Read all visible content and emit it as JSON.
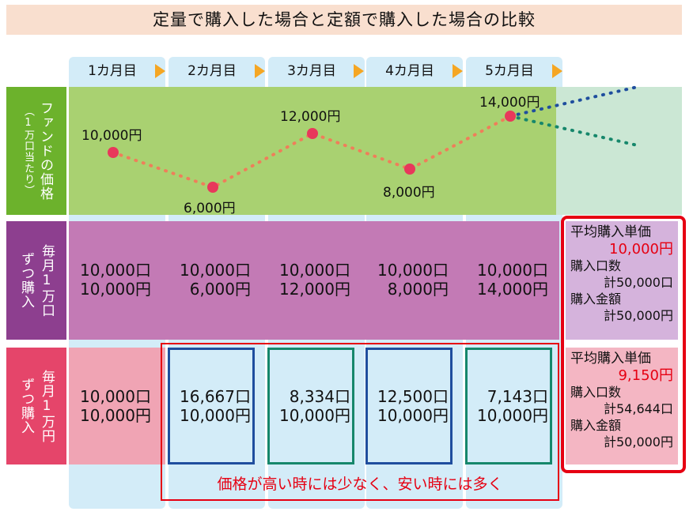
{
  "title": "定量で購入した場合と定額で購入した場合の比較",
  "months": [
    "1カ月目",
    "2カ月目",
    "3カ月目",
    "4カ月目",
    "5カ月目"
  ],
  "price_row": {
    "label_main": "ファンドの価格",
    "label_sub": "（1万口当たり）",
    "prices": [
      "10,000円",
      "6,000円",
      "12,000円",
      "8,000円",
      "14,000円"
    ],
    "line_color": "#ef7e5a",
    "point_color": "#e8385b",
    "future_up_color": "#1f4e9e",
    "future_down_color": "#16876b"
  },
  "fixed_qty_row": {
    "label": [
      "毎月1万口",
      "ずつ購入"
    ],
    "cells": [
      {
        "units": "10,000口",
        "amount": "10,000円"
      },
      {
        "units": "10,000口",
        "amount": "6,000円"
      },
      {
        "units": "10,000口",
        "amount": "12,000円"
      },
      {
        "units": "10,000口",
        "amount": "8,000円"
      },
      {
        "units": "10,000口",
        "amount": "14,000円"
      }
    ],
    "summary": {
      "avg_label": "平均購入単価",
      "avg_value": "10,000円",
      "units_label": "購入口数",
      "units_value": "計50,000口",
      "amount_label": "購入金額",
      "amount_value": "計50,000円"
    }
  },
  "fixed_amt_row": {
    "label": [
      "毎月1万円",
      "ずつ購入"
    ],
    "cells": [
      {
        "units": "10,000口",
        "amount": "10,000円"
      },
      {
        "units": "16,667口",
        "amount": "10,000円"
      },
      {
        "units": "8,334口",
        "amount": "10,000円"
      },
      {
        "units": "12,500口",
        "amount": "10,000円"
      },
      {
        "units": "7,143口",
        "amount": "10,000円"
      }
    ],
    "summary": {
      "avg_label": "平均購入単価",
      "avg_value": "9,150円",
      "units_label": "購入口数",
      "units_value": "計54,644口",
      "amount_label": "購入金額",
      "amount_value": "計50,000円"
    }
  },
  "note": "価格が高い時には少なく、安い時には多く",
  "colors": {
    "green_band": "#a9d171",
    "green_future": "#cbe7d4",
    "purple_band": "#c37ab5",
    "purple_label": "#8d3f8f",
    "purple_summary": "#d5b3dc",
    "pink_band": "#f0a4b4",
    "pink_label": "#e5456a",
    "pink_summary": "#f4b6c3",
    "highlight_red": "#e60012",
    "box_blue": "#1f4e9e",
    "box_green": "#16876b"
  }
}
